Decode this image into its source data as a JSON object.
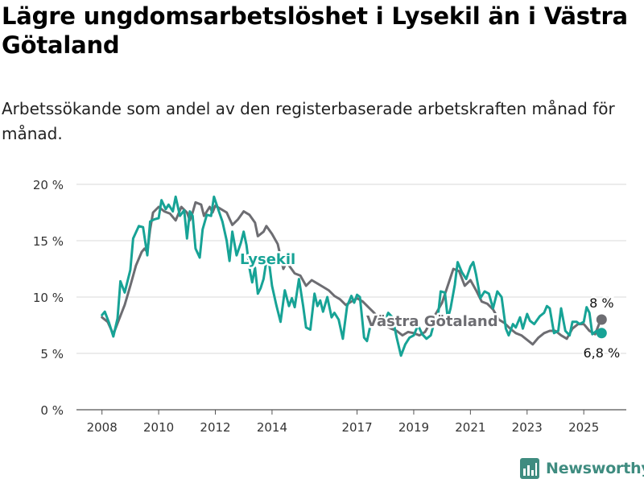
{
  "title": "Lägre ungdomsarbetslöshet i Lysekil än i Västra Götaland",
  "subtitle": "Arbetssökande som andel av den registerbaserade arbetskraften månad för månad.",
  "brand": {
    "name": "Newsworthy",
    "color": "#3f8c80",
    "icon": "bar-chart-logo-icon"
  },
  "chart_data": {
    "type": "line",
    "y_ticks": [
      "0 %",
      "5 %",
      "10 %",
      "15 %",
      "20 %"
    ],
    "y_tick_values": [
      0,
      5,
      10,
      15,
      20
    ],
    "x_ticks": [
      "2008",
      "2010",
      "2012",
      "2014",
      "2017",
      "2019",
      "2021",
      "2023",
      "2025"
    ],
    "x_tick_values": [
      2008,
      2010,
      2012,
      2014,
      2017,
      2019,
      2021,
      2023,
      2025
    ],
    "ylim": [
      0,
      21
    ],
    "xlim": [
      2007.1,
      2026.5
    ],
    "grid": true,
    "series": [
      {
        "name": "Västra Götaland",
        "color": "#6d6d72",
        "end_label": "8 %",
        "points": [
          [
            2008.0,
            8.2
          ],
          [
            2008.2,
            7.8
          ],
          [
            2008.4,
            6.7
          ],
          [
            2008.6,
            8.0
          ],
          [
            2008.8,
            9.3
          ],
          [
            2009.0,
            11.0
          ],
          [
            2009.2,
            12.8
          ],
          [
            2009.4,
            14.0
          ],
          [
            2009.5,
            14.3
          ],
          [
            2009.6,
            14.0
          ],
          [
            2009.7,
            16.0
          ],
          [
            2009.8,
            17.5
          ],
          [
            2010.0,
            18.0
          ],
          [
            2010.2,
            17.6
          ],
          [
            2010.4,
            17.4
          ],
          [
            2010.6,
            16.8
          ],
          [
            2010.8,
            18.0
          ],
          [
            2011.0,
            17.5
          ],
          [
            2011.1,
            16.8
          ],
          [
            2011.2,
            17.5
          ],
          [
            2011.3,
            18.4
          ],
          [
            2011.5,
            18.2
          ],
          [
            2011.6,
            17.2
          ],
          [
            2011.8,
            18.0
          ],
          [
            2011.9,
            17.5
          ],
          [
            2012.0,
            18.1
          ],
          [
            2012.2,
            17.8
          ],
          [
            2012.4,
            17.5
          ],
          [
            2012.6,
            16.4
          ],
          [
            2012.8,
            16.9
          ],
          [
            2013.0,
            17.6
          ],
          [
            2013.2,
            17.3
          ],
          [
            2013.4,
            16.6
          ],
          [
            2013.5,
            15.4
          ],
          [
            2013.7,
            15.8
          ],
          [
            2013.8,
            16.3
          ],
          [
            2014.0,
            15.6
          ],
          [
            2014.2,
            14.7
          ],
          [
            2014.4,
            12.5
          ],
          [
            2014.5,
            13.0
          ],
          [
            2014.6,
            12.8
          ],
          [
            2014.8,
            12.1
          ],
          [
            2015.0,
            11.9
          ],
          [
            2015.2,
            11.0
          ],
          [
            2015.4,
            11.5
          ],
          [
            2015.6,
            11.2
          ],
          [
            2015.8,
            10.9
          ],
          [
            2016.0,
            10.6
          ],
          [
            2016.2,
            10.1
          ],
          [
            2016.4,
            9.8
          ],
          [
            2016.6,
            9.3
          ],
          [
            2016.8,
            9.6
          ],
          [
            2017.0,
            9.9
          ],
          [
            2017.2,
            9.6
          ],
          [
            2017.4,
            9.1
          ],
          [
            2017.6,
            8.6
          ],
          [
            2017.8,
            8.0
          ],
          [
            2018.0,
            7.5
          ],
          [
            2018.2,
            7.2
          ],
          [
            2018.4,
            7.0
          ],
          [
            2018.6,
            6.6
          ],
          [
            2018.8,
            6.9
          ],
          [
            2019.0,
            6.8
          ],
          [
            2019.2,
            6.6
          ],
          [
            2019.4,
            6.9
          ],
          [
            2019.6,
            7.8
          ],
          [
            2019.8,
            8.6
          ],
          [
            2020.0,
            9.5
          ],
          [
            2020.2,
            11.0
          ],
          [
            2020.4,
            12.5
          ],
          [
            2020.6,
            12.3
          ],
          [
            2020.8,
            11.0
          ],
          [
            2021.0,
            11.5
          ],
          [
            2021.2,
            10.6
          ],
          [
            2021.4,
            9.6
          ],
          [
            2021.6,
            9.4
          ],
          [
            2021.8,
            8.9
          ],
          [
            2022.0,
            8.0
          ],
          [
            2022.2,
            7.7
          ],
          [
            2022.4,
            7.2
          ],
          [
            2022.6,
            6.8
          ],
          [
            2022.8,
            6.6
          ],
          [
            2023.0,
            6.2
          ],
          [
            2023.2,
            5.8
          ],
          [
            2023.4,
            6.4
          ],
          [
            2023.6,
            6.8
          ],
          [
            2023.8,
            7.0
          ],
          [
            2024.0,
            7.0
          ],
          [
            2024.2,
            6.6
          ],
          [
            2024.4,
            6.3
          ],
          [
            2024.6,
            7.2
          ],
          [
            2024.8,
            7.6
          ],
          [
            2025.0,
            7.6
          ],
          [
            2025.2,
            7.0
          ],
          [
            2025.4,
            6.7
          ],
          [
            2025.6,
            8.0
          ]
        ]
      },
      {
        "name": "Lysekil",
        "color": "#17a396",
        "end_label": "6,8 %",
        "points": [
          [
            2008.0,
            8.4
          ],
          [
            2008.1,
            8.7
          ],
          [
            2008.25,
            7.7
          ],
          [
            2008.4,
            6.5
          ],
          [
            2008.55,
            8.1
          ],
          [
            2008.65,
            11.4
          ],
          [
            2008.8,
            10.4
          ],
          [
            2009.0,
            12.4
          ],
          [
            2009.1,
            15.2
          ],
          [
            2009.3,
            16.3
          ],
          [
            2009.45,
            16.2
          ],
          [
            2009.6,
            13.7
          ],
          [
            2009.7,
            16.7
          ],
          [
            2009.85,
            16.9
          ],
          [
            2010.0,
            17.0
          ],
          [
            2010.1,
            18.6
          ],
          [
            2010.25,
            17.8
          ],
          [
            2010.35,
            18.2
          ],
          [
            2010.5,
            17.6
          ],
          [
            2010.6,
            18.9
          ],
          [
            2010.75,
            17.2
          ],
          [
            2010.9,
            17.7
          ],
          [
            2011.0,
            15.2
          ],
          [
            2011.1,
            17.6
          ],
          [
            2011.2,
            17.2
          ],
          [
            2011.3,
            14.3
          ],
          [
            2011.45,
            13.5
          ],
          [
            2011.55,
            16.0
          ],
          [
            2011.7,
            17.3
          ],
          [
            2011.85,
            17.2
          ],
          [
            2011.95,
            18.9
          ],
          [
            2012.1,
            17.8
          ],
          [
            2012.25,
            16.7
          ],
          [
            2012.4,
            15.0
          ],
          [
            2012.5,
            13.2
          ],
          [
            2012.6,
            15.8
          ],
          [
            2012.75,
            13.7
          ],
          [
            2012.9,
            14.8
          ],
          [
            2013.0,
            15.8
          ],
          [
            2013.1,
            14.6
          ],
          [
            2013.2,
            12.6
          ],
          [
            2013.3,
            11.3
          ],
          [
            2013.4,
            12.6
          ],
          [
            2013.5,
            10.3
          ],
          [
            2013.6,
            10.8
          ],
          [
            2013.7,
            11.6
          ],
          [
            2013.8,
            13.2
          ],
          [
            2013.9,
            13.0
          ],
          [
            2014.0,
            11.0
          ],
          [
            2014.15,
            9.3
          ],
          [
            2014.3,
            7.8
          ],
          [
            2014.45,
            10.6
          ],
          [
            2014.6,
            9.2
          ],
          [
            2014.7,
            9.9
          ],
          [
            2014.8,
            9.1
          ],
          [
            2014.95,
            11.6
          ],
          [
            2015.1,
            9.2
          ],
          [
            2015.2,
            7.3
          ],
          [
            2015.35,
            7.1
          ],
          [
            2015.5,
            10.3
          ],
          [
            2015.6,
            9.2
          ],
          [
            2015.7,
            9.7
          ],
          [
            2015.8,
            8.7
          ],
          [
            2015.95,
            10.0
          ],
          [
            2016.1,
            8.2
          ],
          [
            2016.2,
            8.6
          ],
          [
            2016.35,
            8.0
          ],
          [
            2016.5,
            6.3
          ],
          [
            2016.65,
            9.2
          ],
          [
            2016.8,
            10.1
          ],
          [
            2016.9,
            9.5
          ],
          [
            2017.0,
            10.2
          ],
          [
            2017.1,
            10.0
          ],
          [
            2017.25,
            6.4
          ],
          [
            2017.35,
            6.1
          ],
          [
            2017.5,
            7.8
          ],
          [
            2017.65,
            7.6
          ],
          [
            2017.8,
            8.3
          ],
          [
            2017.95,
            7.7
          ],
          [
            2018.1,
            8.6
          ],
          [
            2018.25,
            8.2
          ],
          [
            2018.4,
            6.4
          ],
          [
            2018.55,
            4.8
          ],
          [
            2018.7,
            5.8
          ],
          [
            2018.85,
            6.4
          ],
          [
            2019.0,
            6.6
          ],
          [
            2019.15,
            7.5
          ],
          [
            2019.3,
            6.7
          ],
          [
            2019.45,
            6.3
          ],
          [
            2019.6,
            6.6
          ],
          [
            2019.75,
            8.0
          ],
          [
            2019.85,
            8.2
          ],
          [
            2019.95,
            10.5
          ],
          [
            2020.1,
            10.4
          ],
          [
            2020.2,
            8.1
          ],
          [
            2020.3,
            9.0
          ],
          [
            2020.45,
            11.1
          ],
          [
            2020.55,
            13.1
          ],
          [
            2020.7,
            12.2
          ],
          [
            2020.85,
            11.6
          ],
          [
            2021.0,
            12.7
          ],
          [
            2021.1,
            13.1
          ],
          [
            2021.2,
            12.0
          ],
          [
            2021.35,
            9.9
          ],
          [
            2021.5,
            10.5
          ],
          [
            2021.65,
            10.3
          ],
          [
            2021.8,
            9.0
          ],
          [
            2021.95,
            10.5
          ],
          [
            2022.1,
            10.0
          ],
          [
            2022.25,
            7.2
          ],
          [
            2022.35,
            6.6
          ],
          [
            2022.5,
            7.6
          ],
          [
            2022.6,
            7.3
          ],
          [
            2022.75,
            8.2
          ],
          [
            2022.85,
            7.2
          ],
          [
            2023.0,
            8.5
          ],
          [
            2023.1,
            7.9
          ],
          [
            2023.25,
            7.6
          ],
          [
            2023.45,
            8.3
          ],
          [
            2023.6,
            8.6
          ],
          [
            2023.7,
            9.2
          ],
          [
            2023.8,
            9.0
          ],
          [
            2023.95,
            6.8
          ],
          [
            2024.1,
            7.0
          ],
          [
            2024.2,
            9.0
          ],
          [
            2024.35,
            7.0
          ],
          [
            2024.5,
            6.6
          ],
          [
            2024.6,
            7.8
          ],
          [
            2024.75,
            7.8
          ],
          [
            2024.85,
            7.6
          ],
          [
            2025.0,
            7.8
          ],
          [
            2025.1,
            9.1
          ],
          [
            2025.2,
            8.6
          ],
          [
            2025.3,
            6.7
          ],
          [
            2025.45,
            7.0
          ],
          [
            2025.6,
            6.8
          ]
        ]
      }
    ]
  }
}
